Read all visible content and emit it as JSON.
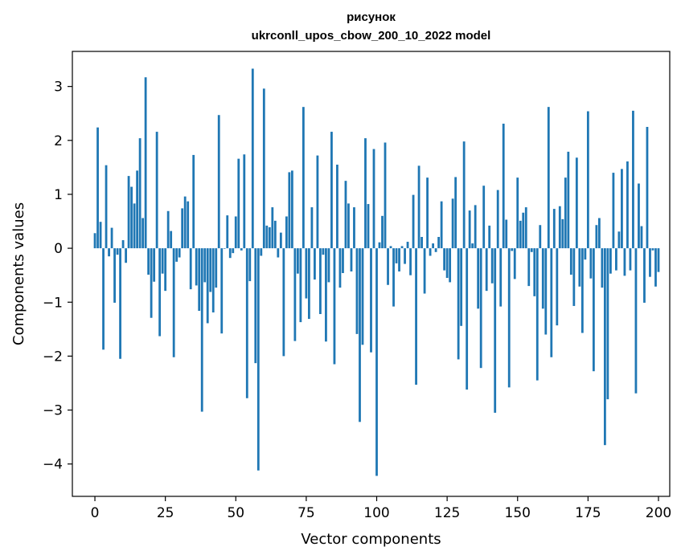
{
  "chart_data": {
    "type": "bar",
    "title_line1": "рисунок",
    "title_line2": "ukrconll_upos_cbow_200_10_2022 model",
    "xlabel": "Vector components",
    "ylabel": "Components values",
    "xlim": [
      -8,
      204
    ],
    "ylim": [
      -4.6,
      3.65
    ],
    "x_ticks": [
      0,
      25,
      50,
      75,
      100,
      125,
      150,
      175,
      200
    ],
    "x_tick_labels": [
      "0",
      "25",
      "50",
      "75",
      "100",
      "125",
      "150",
      "175",
      "200"
    ],
    "y_ticks": [
      3,
      2,
      1,
      0,
      -1,
      -2,
      -3,
      -4
    ],
    "y_tick_labels": [
      "3",
      "2",
      "1",
      "0",
      "−1",
      "−2",
      "−3",
      "−4"
    ],
    "bar_color": "#1f77b4",
    "grid": false,
    "values": [
      0.28,
      2.24,
      0.49,
      -1.88,
      1.54,
      -0.15,
      0.38,
      -1.01,
      -0.12,
      -2.05,
      0.15,
      -0.27,
      1.34,
      1.14,
      0.83,
      1.44,
      2.04,
      0.56,
      3.17,
      -0.49,
      -1.29,
      -0.62,
      2.16,
      -1.63,
      -0.47,
      -0.79,
      0.69,
      0.32,
      -2.02,
      -0.25,
      -0.17,
      0.74,
      0.96,
      0.87,
      -0.76,
      1.73,
      -0.69,
      -1.16,
      -3.03,
      -0.63,
      -1.39,
      -0.81,
      -1.19,
      -0.73,
      2.47,
      -1.58,
      -0.01,
      0.61,
      -0.18,
      -0.09,
      0.59,
      1.66,
      -0.04,
      1.74,
      -2.78,
      -0.61,
      3.33,
      -2.13,
      -4.12,
      -0.14,
      2.96,
      0.42,
      0.39,
      0.76,
      0.51,
      -0.17,
      0.29,
      -2.0,
      0.59,
      1.41,
      1.44,
      -1.72,
      -0.47,
      -1.37,
      2.62,
      -0.93,
      -1.31,
      0.76,
      -0.58,
      1.72,
      -1.22,
      -0.12,
      -1.73,
      -0.63,
      2.16,
      -2.15,
      1.55,
      -0.73,
      -0.46,
      1.25,
      0.83,
      -0.43,
      0.76,
      -1.59,
      -3.22,
      -1.79,
      2.04,
      0.82,
      -1.93,
      1.84,
      -4.22,
      0.11,
      0.6,
      1.96,
      -0.68,
      0.04,
      -1.08,
      -0.28,
      -0.43,
      0.04,
      -0.29,
      0.12,
      -0.5,
      0.99,
      -2.53,
      1.53,
      0.21,
      -0.84,
      1.31,
      -0.14,
      0.09,
      -0.07,
      0.21,
      0.87,
      -0.41,
      -0.55,
      -0.63,
      0.92,
      1.32,
      -2.06,
      -1.44,
      1.98,
      -2.62,
      0.7,
      0.09,
      0.8,
      -1.12,
      -2.22,
      1.16,
      -0.79,
      0.42,
      -0.65,
      -3.05,
      1.08,
      -1.08,
      2.31,
      0.53,
      -2.58,
      -0.05,
      -0.57,
      1.31,
      0.51,
      0.66,
      0.76,
      -0.7,
      -0.07,
      -0.89,
      -2.45,
      0.43,
      -1.12,
      -1.6,
      2.62,
      -2.02,
      0.73,
      -1.43,
      0.78,
      0.54,
      1.31,
      1.79,
      -0.49,
      -1.07,
      1.68,
      -0.71,
      -1.57,
      -0.21,
      2.54,
      -0.56,
      -2.28,
      0.43,
      0.56,
      -0.73,
      -3.65,
      -2.8,
      -0.47,
      1.4,
      -0.41,
      0.31,
      1.47,
      -0.51,
      1.61,
      -0.41,
      2.55,
      -2.69,
      1.2,
      0.41,
      -1.01,
      2.25,
      -0.53,
      -0.04,
      -0.71,
      -0.44
    ]
  }
}
